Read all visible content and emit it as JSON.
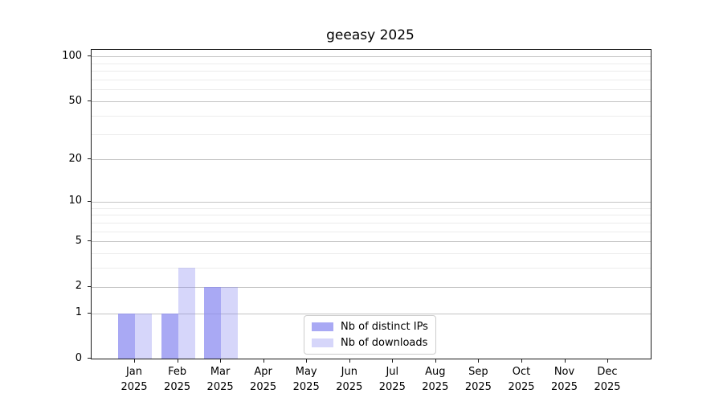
{
  "chart_data": {
    "type": "bar",
    "title": "geeasy 2025",
    "x_labels": [
      {
        "line1": "Jan",
        "line2": "2025"
      },
      {
        "line1": "Feb",
        "line2": "2025"
      },
      {
        "line1": "Mar",
        "line2": "2025"
      },
      {
        "line1": "Apr",
        "line2": "2025"
      },
      {
        "line1": "May",
        "line2": "2025"
      },
      {
        "line1": "Jun",
        "line2": "2025"
      },
      {
        "line1": "Jul",
        "line2": "2025"
      },
      {
        "line1": "Aug",
        "line2": "2025"
      },
      {
        "line1": "Sep",
        "line2": "2025"
      },
      {
        "line1": "Oct",
        "line2": "2025"
      },
      {
        "line1": "Nov",
        "line2": "2025"
      },
      {
        "line1": "Dec",
        "line2": "2025"
      }
    ],
    "series": [
      {
        "name": "Nb of distinct IPs",
        "values": [
          1,
          1,
          2,
          0,
          0,
          0,
          0,
          0,
          0,
          0,
          0,
          0
        ],
        "base_color": "#8888f0",
        "alpha": 0.72
      },
      {
        "name": "Nb of downloads",
        "values": [
          1,
          3,
          2,
          0,
          0,
          0,
          0,
          0,
          0,
          0,
          0,
          0
        ],
        "base_color": "#8888f0",
        "alpha": 0.34
      }
    ],
    "yscale": "log1p",
    "ylim": [
      0,
      111
    ],
    "y_tick_values": [
      0,
      1,
      2,
      5,
      10,
      20,
      50,
      100
    ],
    "y_tick_labels": [
      "0",
      "1",
      "2",
      "5",
      "10",
      "20",
      "50",
      "100"
    ],
    "y_minor_gridline_values": [
      3,
      4,
      6,
      7,
      8,
      9,
      30,
      40,
      60,
      70,
      80,
      90
    ],
    "grid": true,
    "legend": {
      "position": "lower-center-inside"
    },
    "colors": {
      "major_grid": "#c4c4c4",
      "minor_grid": "#ececec",
      "axis": "#1a1a1a",
      "background": "#ffffff"
    }
  }
}
